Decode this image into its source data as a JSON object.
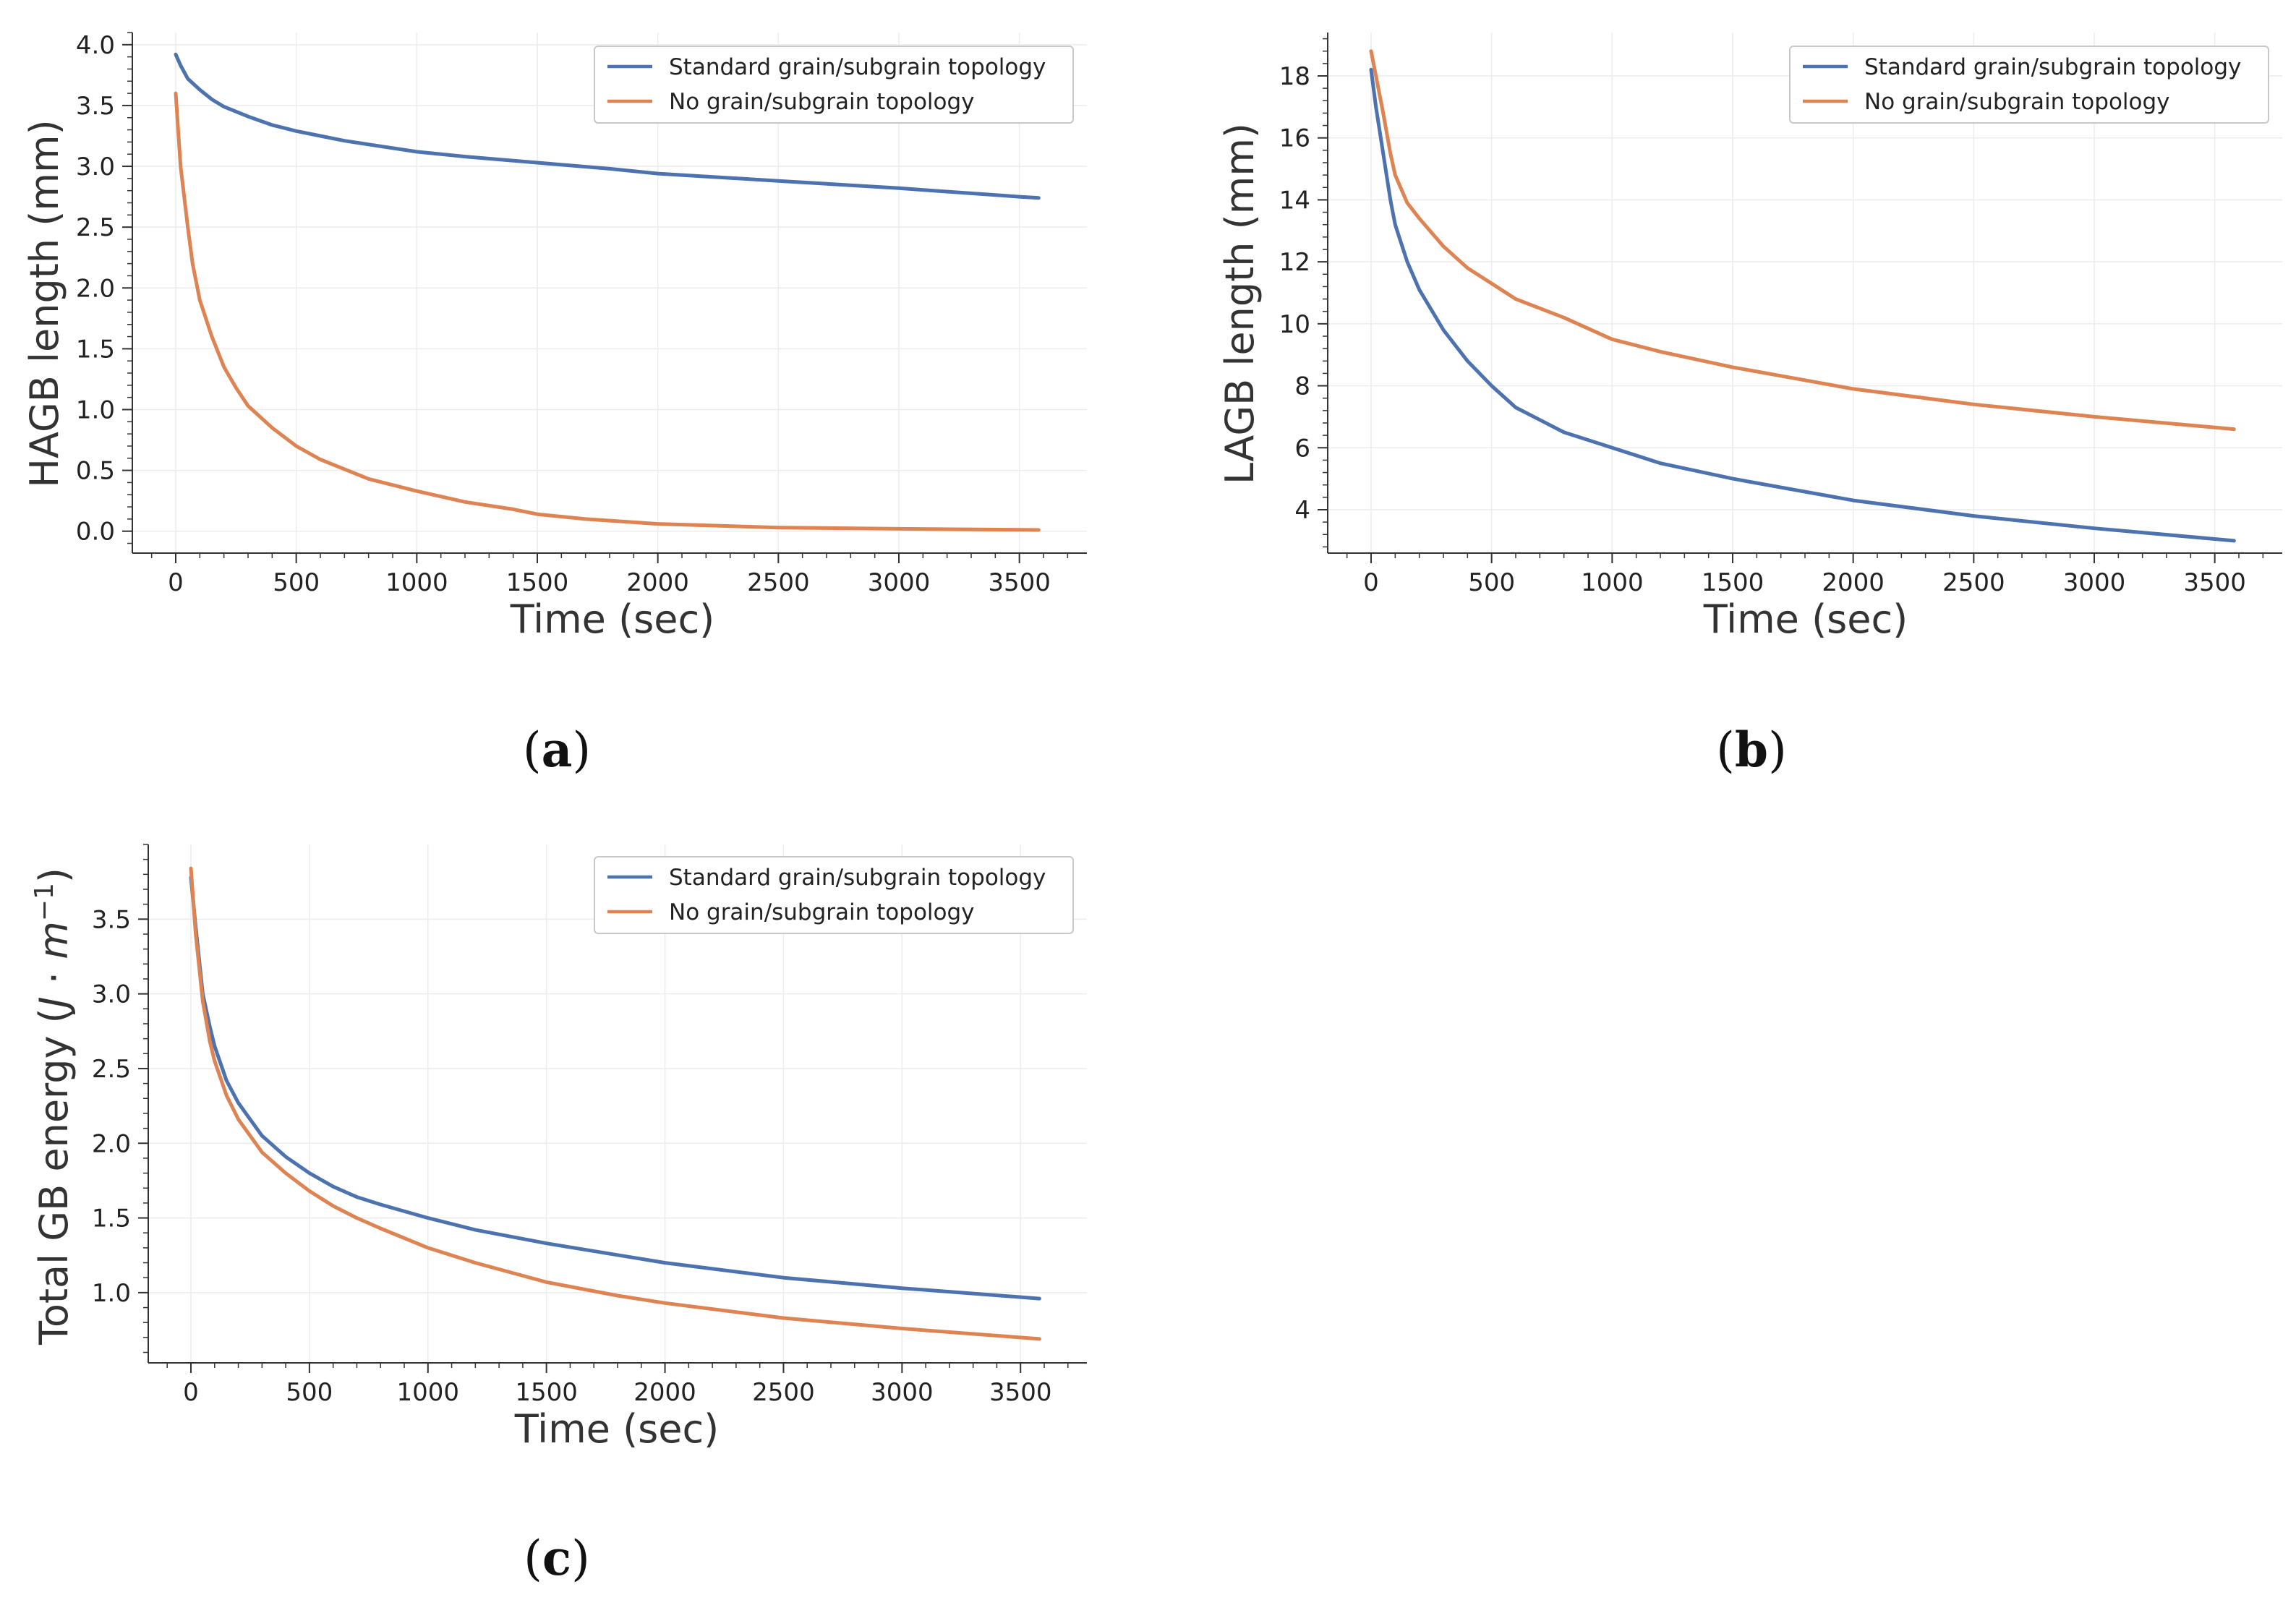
{
  "colors": {
    "standard": "#4c72b0",
    "no_topology": "#dd8452",
    "grid": "#ececec",
    "axis": "#333333"
  },
  "chart_data": [
    {
      "id": "a",
      "type": "line",
      "caption": "a",
      "xlabel": "Time (sec)",
      "ylabel": "HAGB length (mm)",
      "xlim": [
        -180,
        3780
      ],
      "ylim": [
        -0.18,
        4.1
      ],
      "xticks": [
        0,
        500,
        1000,
        1500,
        2000,
        2500,
        3000,
        3500
      ],
      "yticks": [
        0.0,
        0.5,
        1.0,
        1.5,
        2.0,
        2.5,
        3.0,
        3.5,
        4.0
      ],
      "ytick_labels": [
        "0.0",
        "0.5",
        "1.0",
        "1.5",
        "2.0",
        "2.5",
        "3.0",
        "3.5",
        "4.0"
      ],
      "grid": true,
      "legend": "top-right",
      "series": [
        {
          "name": "Standard grain/subgrain topology",
          "color": "#4c72b0",
          "x": [
            0,
            20,
            50,
            100,
            150,
            200,
            300,
            400,
            500,
            600,
            700,
            800,
            1000,
            1200,
            1500,
            1800,
            2000,
            2500,
            3000,
            3500,
            3580
          ],
          "y": [
            3.92,
            3.83,
            3.72,
            3.63,
            3.55,
            3.49,
            3.41,
            3.34,
            3.29,
            3.25,
            3.21,
            3.18,
            3.12,
            3.08,
            3.03,
            2.98,
            2.94,
            2.88,
            2.82,
            2.75,
            2.74
          ]
        },
        {
          "name": "No grain/subgrain topology",
          "color": "#dd8452",
          "x": [
            0,
            20,
            50,
            70,
            100,
            150,
            200,
            250,
            300,
            400,
            500,
            600,
            700,
            800,
            1000,
            1200,
            1400,
            1500,
            1700,
            2000,
            2500,
            3000,
            3580
          ],
          "y": [
            3.6,
            3.0,
            2.5,
            2.2,
            1.9,
            1.6,
            1.35,
            1.18,
            1.03,
            0.85,
            0.7,
            0.59,
            0.51,
            0.43,
            0.33,
            0.24,
            0.18,
            0.14,
            0.1,
            0.06,
            0.03,
            0.02,
            0.01
          ]
        }
      ]
    },
    {
      "id": "b",
      "type": "line",
      "caption": "b",
      "xlabel": "Time (sec)",
      "ylabel": "LAGB length (mm)",
      "xlim": [
        -180,
        3780
      ],
      "ylim": [
        2.6,
        19.4
      ],
      "xticks": [
        0,
        500,
        1000,
        1500,
        2000,
        2500,
        3000,
        3500
      ],
      "yticks": [
        4,
        6,
        8,
        10,
        12,
        14,
        16,
        18
      ],
      "ytick_labels": [
        "4",
        "6",
        "8",
        "10",
        "12",
        "14",
        "16",
        "18"
      ],
      "grid": true,
      "legend": "top-right",
      "series": [
        {
          "name": "Standard grain/subgrain topology",
          "color": "#4c72b0",
          "x": [
            0,
            20,
            50,
            80,
            100,
            150,
            200,
            300,
            400,
            500,
            600,
            700,
            800,
            1000,
            1200,
            1500,
            2000,
            2500,
            3000,
            3580
          ],
          "y": [
            18.2,
            17.0,
            15.5,
            14.0,
            13.2,
            12.0,
            11.1,
            9.8,
            8.8,
            8.0,
            7.3,
            6.9,
            6.5,
            6.0,
            5.5,
            5.0,
            4.3,
            3.8,
            3.4,
            3.0
          ]
        },
        {
          "name": "No grain/subgrain topology",
          "color": "#dd8452",
          "x": [
            0,
            20,
            50,
            80,
            100,
            150,
            200,
            300,
            400,
            500,
            600,
            700,
            800,
            1000,
            1200,
            1500,
            2000,
            2500,
            3000,
            3580
          ],
          "y": [
            18.8,
            18.0,
            16.8,
            15.5,
            14.8,
            13.9,
            13.4,
            12.5,
            11.8,
            11.3,
            10.8,
            10.5,
            10.2,
            9.5,
            9.1,
            8.6,
            7.9,
            7.4,
            7.0,
            6.6
          ]
        }
      ]
    },
    {
      "id": "c",
      "type": "line",
      "caption": "c",
      "xlabel": "Time (sec)",
      "ylabel_main": "Total GB energy (",
      "ylabel_sym_j": "J",
      "ylabel_dot": " · ",
      "ylabel_sym_m": "m",
      "ylabel_exp": "−1",
      "ylabel_close": ")",
      "xlim": [
        -180,
        3780
      ],
      "ylim": [
        0.53,
        4.0
      ],
      "xticks": [
        0,
        500,
        1000,
        1500,
        2000,
        2500,
        3000,
        3500
      ],
      "yticks": [
        1.0,
        1.5,
        2.0,
        2.5,
        3.0,
        3.5
      ],
      "ytick_labels": [
        "1.0",
        "1.5",
        "2.0",
        "2.5",
        "3.0",
        "3.5"
      ],
      "grid": true,
      "legend": "top-right",
      "series": [
        {
          "name": "Standard grain/subgrain topology",
          "color": "#4c72b0",
          "x": [
            0,
            20,
            50,
            80,
            100,
            150,
            200,
            300,
            400,
            500,
            600,
            700,
            800,
            1000,
            1200,
            1500,
            2000,
            2500,
            3000,
            3580
          ],
          "y": [
            3.78,
            3.45,
            3.0,
            2.78,
            2.65,
            2.42,
            2.27,
            2.05,
            1.91,
            1.8,
            1.71,
            1.64,
            1.59,
            1.5,
            1.42,
            1.33,
            1.2,
            1.1,
            1.03,
            0.96
          ]
        },
        {
          "name": "No grain/subgrain topology",
          "color": "#dd8452",
          "x": [
            0,
            20,
            50,
            80,
            100,
            150,
            200,
            300,
            400,
            500,
            600,
            700,
            800,
            1000,
            1200,
            1500,
            1800,
            2000,
            2500,
            3000,
            3580
          ],
          "y": [
            3.84,
            3.4,
            2.95,
            2.68,
            2.55,
            2.32,
            2.16,
            1.94,
            1.8,
            1.68,
            1.58,
            1.5,
            1.43,
            1.3,
            1.2,
            1.07,
            0.98,
            0.93,
            0.83,
            0.76,
            0.69
          ]
        }
      ]
    }
  ]
}
